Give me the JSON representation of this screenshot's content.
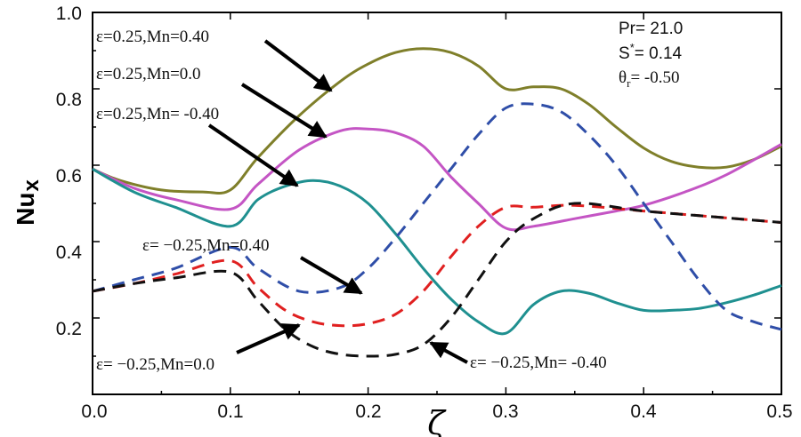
{
  "chart_data": {
    "type": "line",
    "title": "",
    "xlabel": "ζ",
    "ylabel": "Nux",
    "ylabel_main": "Nu",
    "ylabel_sub": "x",
    "xlim": [
      0.0,
      0.5
    ],
    "ylim": [
      0.0,
      1.0
    ],
    "x_ticks": [
      0.0,
      0.1,
      0.2,
      0.3,
      0.4,
      0.5
    ],
    "x_tick_labels": [
      "0.0",
      "0.1",
      "0.2",
      "0.3",
      "0.4",
      "0.5"
    ],
    "y_ticks": [
      0.2,
      0.4,
      0.6,
      0.8,
      1.0
    ],
    "y_tick_labels": [
      "0.2",
      "0.4",
      "0.6",
      "0.8",
      "1.0"
    ],
    "grid": false,
    "parameters": [
      {
        "text": "Pr= 21.0"
      },
      {
        "main": "S",
        "sup": "*",
        "rest": "= 0.14"
      },
      {
        "main": "θ",
        "sub": "r",
        "rest": "= -0.50"
      }
    ],
    "series": [
      {
        "name": "ε=0.25,Mn=0.40",
        "color": "#7f7f2a",
        "dash": "solid",
        "x": [
          0,
          0.02,
          0.05,
          0.08,
          0.1,
          0.12,
          0.15,
          0.18,
          0.2,
          0.22,
          0.24,
          0.26,
          0.28,
          0.3,
          0.32,
          0.34,
          0.36,
          0.38,
          0.4,
          0.42,
          0.44,
          0.46,
          0.48,
          0.5
        ],
        "values": [
          0.59,
          0.56,
          0.535,
          0.53,
          0.535,
          0.62,
          0.73,
          0.82,
          0.865,
          0.895,
          0.905,
          0.895,
          0.86,
          0.8,
          0.805,
          0.8,
          0.76,
          0.7,
          0.645,
          0.61,
          0.595,
          0.595,
          0.615,
          0.65
        ]
      },
      {
        "name": "ε=0.25,Mn=0.0",
        "color": "#c455c4",
        "dash": "solid",
        "x": [
          0,
          0.03,
          0.06,
          0.1,
          0.12,
          0.15,
          0.18,
          0.2,
          0.22,
          0.24,
          0.26,
          0.28,
          0.3,
          0.32,
          0.35,
          0.38,
          0.4,
          0.43,
          0.46,
          0.5
        ],
        "values": [
          0.59,
          0.54,
          0.51,
          0.485,
          0.55,
          0.64,
          0.69,
          0.695,
          0.685,
          0.65,
          0.57,
          0.5,
          0.435,
          0.44,
          0.46,
          0.48,
          0.495,
          0.53,
          0.575,
          0.655
        ]
      },
      {
        "name": "ε=0.25,Mn= -0.40",
        "color": "#1f9090",
        "dash": "solid",
        "x": [
          0,
          0.03,
          0.06,
          0.1,
          0.12,
          0.14,
          0.16,
          0.18,
          0.2,
          0.22,
          0.24,
          0.26,
          0.28,
          0.3,
          0.32,
          0.34,
          0.36,
          0.38,
          0.4,
          0.42,
          0.44,
          0.46,
          0.48,
          0.5
        ],
        "values": [
          0.59,
          0.53,
          0.49,
          0.44,
          0.51,
          0.545,
          0.56,
          0.545,
          0.5,
          0.42,
          0.33,
          0.25,
          0.19,
          0.16,
          0.235,
          0.27,
          0.265,
          0.24,
          0.22,
          0.22,
          0.225,
          0.24,
          0.26,
          0.285
        ]
      },
      {
        "name": "ε= −0.25,Mn=0.40",
        "color": "#2f4ea8",
        "dash": "dashed",
        "x": [
          0,
          0.03,
          0.06,
          0.1,
          0.12,
          0.15,
          0.18,
          0.2,
          0.22,
          0.24,
          0.26,
          0.28,
          0.3,
          0.32,
          0.34,
          0.36,
          0.38,
          0.4,
          0.42,
          0.44,
          0.46,
          0.48,
          0.5
        ],
        "values": [
          0.27,
          0.3,
          0.33,
          0.385,
          0.33,
          0.27,
          0.28,
          0.33,
          0.41,
          0.5,
          0.59,
          0.68,
          0.75,
          0.76,
          0.74,
          0.68,
          0.6,
          0.5,
          0.4,
          0.3,
          0.22,
          0.19,
          0.17
        ]
      },
      {
        "name": "ε= −0.25,Mn=0.0",
        "color": "#e02020",
        "dash": "dashed",
        "x": [
          0,
          0.03,
          0.06,
          0.1,
          0.12,
          0.14,
          0.16,
          0.18,
          0.2,
          0.22,
          0.24,
          0.26,
          0.28,
          0.3,
          0.32,
          0.35,
          0.4,
          0.45,
          0.5
        ],
        "values": [
          0.27,
          0.29,
          0.315,
          0.35,
          0.28,
          0.22,
          0.19,
          0.18,
          0.185,
          0.21,
          0.27,
          0.36,
          0.44,
          0.49,
          0.49,
          0.495,
          0.48,
          0.465,
          0.45
        ]
      },
      {
        "name": "ε= −0.25,Mn= -0.40",
        "color": "#111111",
        "dash": "dashed",
        "x": [
          0,
          0.03,
          0.06,
          0.1,
          0.12,
          0.14,
          0.16,
          0.18,
          0.2,
          0.22,
          0.24,
          0.26,
          0.28,
          0.3,
          0.32,
          0.35,
          0.4,
          0.45,
          0.5
        ],
        "values": [
          0.27,
          0.29,
          0.305,
          0.32,
          0.245,
          0.17,
          0.125,
          0.105,
          0.1,
          0.105,
          0.13,
          0.2,
          0.3,
          0.4,
          0.46,
          0.5,
          0.48,
          0.465,
          0.45
        ]
      }
    ],
    "annotations": [
      {
        "text": "ε=0.25,Mn=0.40"
      },
      {
        "text": "ε=0.25,Mn=0.0"
      },
      {
        "text": "ε=0.25,Mn= -0.40"
      },
      {
        "text": "ε= −0.25,Mn=0.40"
      },
      {
        "text": "ε= −0.25,Mn=0.0"
      },
      {
        "text": "ε= −0.25,Mn= -0.40"
      }
    ]
  }
}
